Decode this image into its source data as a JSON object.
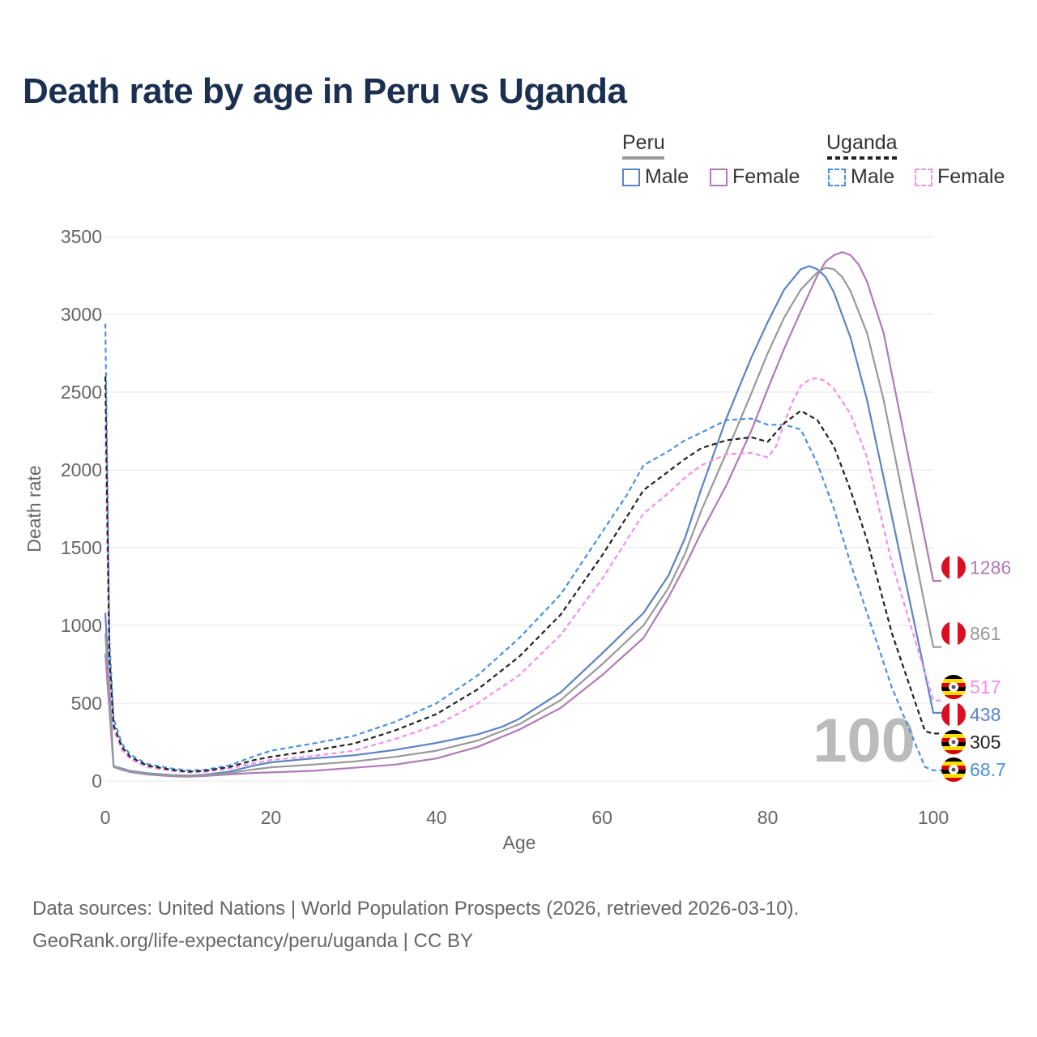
{
  "title": "Death rate by age in Peru vs Uganda",
  "legend": {
    "groups": [
      {
        "name": "Peru",
        "style": "solid",
        "line_color": "#999999",
        "items": [
          {
            "label": "Male",
            "color": "#5b84c4"
          },
          {
            "label": "Female",
            "color": "#b07ab8"
          }
        ]
      },
      {
        "name": "Uganda",
        "style": "dashed",
        "line_color": "#222222",
        "items": [
          {
            "label": "Male",
            "color": "#4a90e2"
          },
          {
            "label": "Female",
            "color": "#f58cf0"
          }
        ]
      }
    ]
  },
  "watermark": "100",
  "footer": {
    "line1": "Data sources: United Nations | World Population Prospects (2026, retrieved 2026-03-10).",
    "line2": "GeoRank.org/life-expectancy/peru/uganda | CC BY"
  },
  "chart_data": {
    "type": "line",
    "xlabel": "Age",
    "ylabel": "Death rate",
    "xlim": [
      0,
      100
    ],
    "ylim": [
      0,
      3500
    ],
    "xticks": [
      0,
      20,
      40,
      60,
      80,
      100
    ],
    "yticks": [
      0,
      500,
      1000,
      1500,
      2000,
      2500,
      3000,
      3500
    ],
    "grid": true,
    "series": [
      {
        "name": "Peru Male",
        "color": "#5b84c4",
        "dash": false,
        "end_label": "438",
        "flag": "peru",
        "x": [
          0,
          1,
          2,
          3,
          5,
          8,
          10,
          12,
          15,
          18,
          20,
          25,
          30,
          35,
          40,
          45,
          48,
          50,
          55,
          60,
          65,
          68,
          70,
          72,
          75,
          78,
          80,
          82,
          84,
          85,
          86,
          87,
          88,
          90,
          92,
          95,
          100
        ],
        "y": [
          1080,
          95,
          80,
          65,
          50,
          38,
          35,
          40,
          60,
          100,
          120,
          145,
          165,
          200,
          245,
          300,
          350,
          400,
          570,
          820,
          1080,
          1320,
          1560,
          1880,
          2330,
          2720,
          2950,
          3160,
          3290,
          3310,
          3290,
          3240,
          3140,
          2850,
          2450,
          1700,
          438
        ]
      },
      {
        "name": "Peru Female",
        "color": "#b07ab8",
        "dash": false,
        "end_label": "1286",
        "flag": "peru",
        "x": [
          0,
          1,
          2,
          3,
          5,
          8,
          10,
          12,
          15,
          18,
          20,
          25,
          30,
          35,
          40,
          45,
          50,
          55,
          60,
          65,
          68,
          70,
          72,
          75,
          78,
          80,
          82,
          84,
          86,
          87,
          88,
          89,
          90,
          91,
          92,
          94,
          96,
          100
        ],
        "y": [
          820,
          90,
          72,
          58,
          42,
          30,
          28,
          32,
          42,
          52,
          55,
          65,
          85,
          105,
          145,
          220,
          330,
          470,
          680,
          920,
          1180,
          1380,
          1600,
          1900,
          2250,
          2520,
          2780,
          3020,
          3250,
          3340,
          3380,
          3400,
          3380,
          3320,
          3210,
          2880,
          2350,
          1286
        ]
      },
      {
        "name": "Peru Total",
        "color": "#999999",
        "dash": false,
        "end_label": "861",
        "flag": "peru",
        "x": [
          0,
          1,
          2,
          3,
          5,
          8,
          10,
          12,
          15,
          18,
          20,
          25,
          30,
          35,
          40,
          45,
          50,
          55,
          60,
          65,
          68,
          70,
          72,
          75,
          78,
          80,
          82,
          84,
          86,
          87,
          88,
          89,
          90,
          92,
          94,
          96,
          100
        ],
        "y": [
          950,
          92,
          76,
          62,
          46,
          34,
          32,
          36,
          50,
          75,
          88,
          105,
          125,
          155,
          195,
          260,
          365,
          520,
          750,
          1000,
          1240,
          1460,
          1740,
          2110,
          2490,
          2750,
          2980,
          3160,
          3270,
          3300,
          3290,
          3240,
          3150,
          2880,
          2450,
          1920,
          861
        ]
      },
      {
        "name": "Uganda Male",
        "color": "#4a90e2",
        "dash": true,
        "end_label": "68.7",
        "flag": "uganda",
        "x": [
          0,
          0.5,
          1,
          2,
          3,
          5,
          8,
          10,
          12,
          15,
          18,
          20,
          25,
          30,
          35,
          40,
          45,
          50,
          55,
          60,
          63,
          65,
          68,
          70,
          72,
          75,
          78,
          80,
          82,
          84,
          86,
          88,
          90,
          92,
          95,
          99,
          100
        ],
        "y": [
          2940,
          900,
          400,
          240,
          170,
          110,
          80,
          68,
          72,
          100,
          160,
          195,
          240,
          290,
          380,
          500,
          680,
          920,
          1200,
          1600,
          1840,
          2030,
          2120,
          2190,
          2240,
          2320,
          2330,
          2290,
          2290,
          2260,
          2040,
          1750,
          1400,
          1080,
          600,
          90,
          68.7
        ]
      },
      {
        "name": "Uganda Female",
        "color": "#f58cf0",
        "dash": true,
        "end_label": "517",
        "flag": "uganda",
        "x": [
          0,
          0.5,
          1,
          2,
          3,
          5,
          8,
          10,
          12,
          15,
          18,
          20,
          25,
          30,
          35,
          40,
          45,
          50,
          55,
          60,
          63,
          65,
          68,
          70,
          72,
          75,
          78,
          80,
          81,
          82,
          83,
          84,
          85,
          86,
          87,
          88,
          90,
          92,
          95,
          100
        ],
        "y": [
          2280,
          700,
          330,
          200,
          140,
          90,
          65,
          55,
          58,
          80,
          115,
          135,
          160,
          195,
          270,
          360,
          500,
          680,
          940,
          1300,
          1550,
          1720,
          1850,
          1950,
          2030,
          2100,
          2110,
          2080,
          2150,
          2300,
          2440,
          2540,
          2580,
          2590,
          2570,
          2520,
          2360,
          2080,
          1400,
          517
        ]
      },
      {
        "name": "Uganda Total",
        "color": "#222222",
        "dash": true,
        "end_label": "305",
        "flag": "uganda",
        "x": [
          0,
          0.5,
          1,
          2,
          3,
          5,
          8,
          10,
          12,
          15,
          18,
          20,
          25,
          30,
          35,
          40,
          45,
          50,
          55,
          60,
          63,
          65,
          68,
          70,
          72,
          75,
          78,
          80,
          82,
          84,
          86,
          88,
          90,
          92,
          95,
          99,
          100
        ],
        "y": [
          2600,
          800,
          360,
          220,
          155,
          100,
          72,
          60,
          65,
          90,
          135,
          155,
          195,
          240,
          325,
          430,
          590,
          800,
          1070,
          1450,
          1700,
          1870,
          1990,
          2070,
          2140,
          2190,
          2210,
          2180,
          2300,
          2380,
          2320,
          2150,
          1870,
          1550,
          950,
          320,
          305
        ]
      }
    ]
  }
}
